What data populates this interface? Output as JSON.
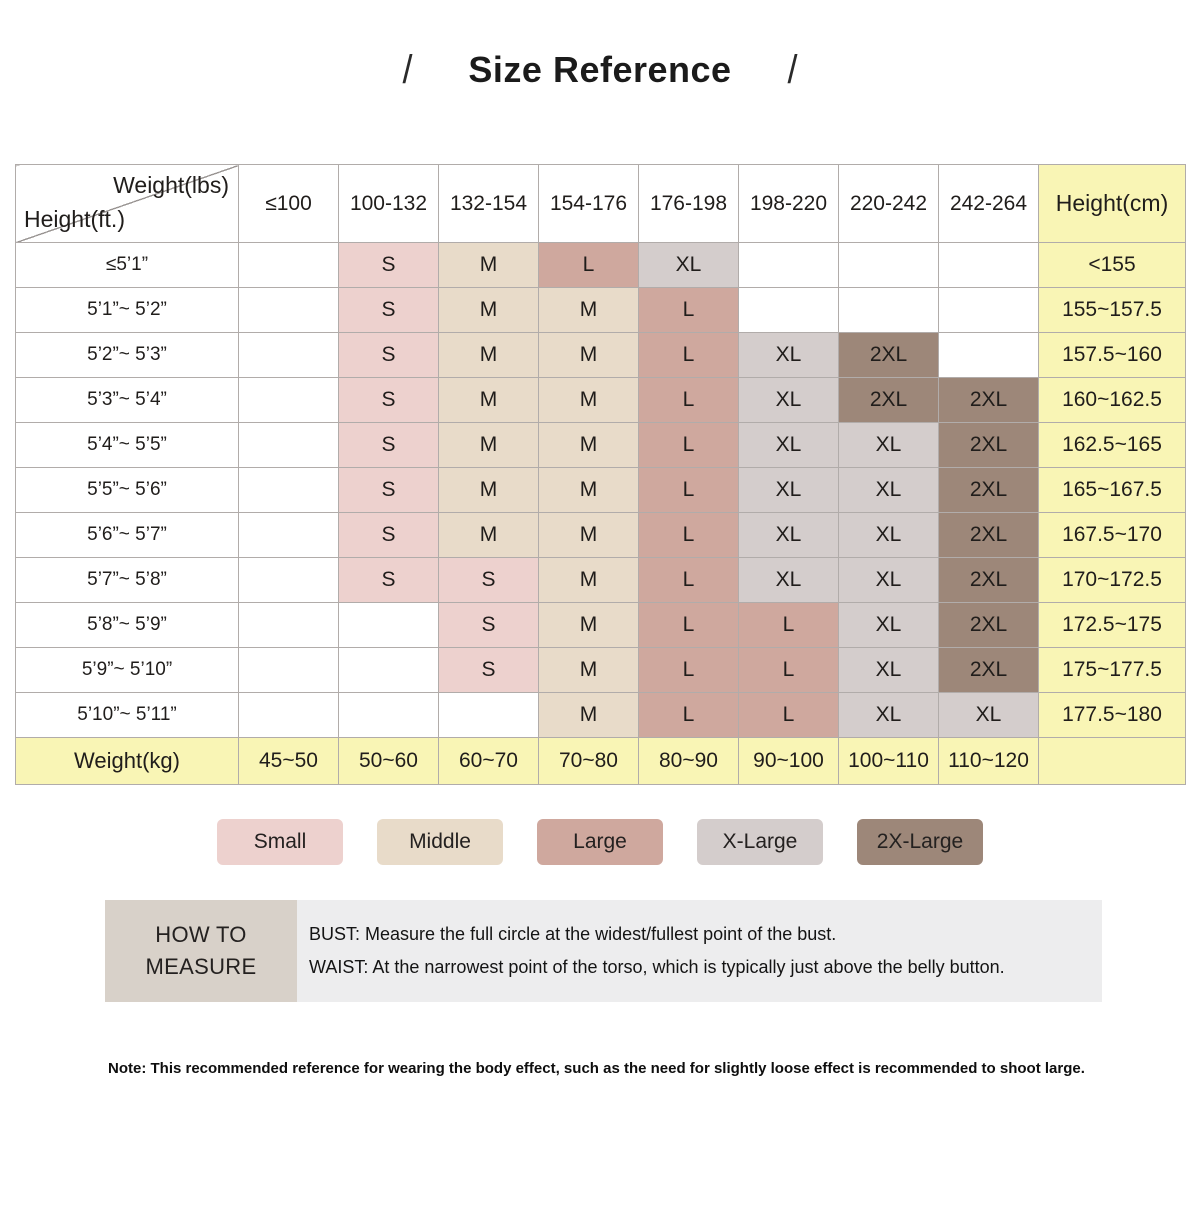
{
  "title": {
    "text": "Size Reference",
    "decor_left": "/",
    "decor_right": "/"
  },
  "colors": {
    "small": "#edd1ce",
    "middle": "#e8dbc9",
    "large": "#cfa89e",
    "xlarge": "#d4cdcc",
    "xxlarge": "#9d8779",
    "highlight": "#f9f5b5",
    "grid": "#b1acaa",
    "measure_label_bg": "#d8d1c9",
    "measure_panel_bg": "#ededee"
  },
  "table": {
    "corner": {
      "top": "Weight(lbs)",
      "bottom": "Height(ft.)"
    },
    "weight_headers": [
      "≤100",
      "100-132",
      "132-154",
      "154-176",
      "176-198",
      "198-220",
      "220-242",
      "242-264"
    ],
    "height_header": "Height(cm)",
    "rows": [
      {
        "height_ft": "≤5’1”",
        "height_cm": "<155",
        "cells": [
          null,
          {
            "text": "S",
            "size": "small"
          },
          {
            "text": "M",
            "size": "middle"
          },
          {
            "text": "L",
            "size": "large"
          },
          {
            "text": "XL",
            "size": "xlarge"
          },
          null,
          null,
          null
        ]
      },
      {
        "height_ft": "5’1”~ 5’2”",
        "height_cm": "155~157.5",
        "cells": [
          null,
          {
            "text": "S",
            "size": "small"
          },
          {
            "text": "M",
            "size": "middle"
          },
          {
            "text": "M",
            "size": "middle"
          },
          {
            "text": "L",
            "size": "large"
          },
          null,
          null,
          null
        ]
      },
      {
        "height_ft": "5’2”~ 5’3”",
        "height_cm": "157.5~160",
        "cells": [
          null,
          {
            "text": "S",
            "size": "small"
          },
          {
            "text": "M",
            "size": "middle"
          },
          {
            "text": "M",
            "size": "middle"
          },
          {
            "text": "L",
            "size": "large"
          },
          {
            "text": "XL",
            "size": "xlarge"
          },
          {
            "text": "2XL",
            "size": "xxlarge"
          },
          null
        ]
      },
      {
        "height_ft": "5’3”~ 5’4”",
        "height_cm": "160~162.5",
        "cells": [
          null,
          {
            "text": "S",
            "size": "small"
          },
          {
            "text": "M",
            "size": "middle"
          },
          {
            "text": "M",
            "size": "middle"
          },
          {
            "text": "L",
            "size": "large"
          },
          {
            "text": "XL",
            "size": "xlarge"
          },
          {
            "text": "2XL",
            "size": "xxlarge"
          },
          {
            "text": "2XL",
            "size": "xxlarge"
          }
        ]
      },
      {
        "height_ft": "5’4”~ 5’5”",
        "height_cm": "162.5~165",
        "cells": [
          null,
          {
            "text": "S",
            "size": "small"
          },
          {
            "text": "M",
            "size": "middle"
          },
          {
            "text": "M",
            "size": "middle"
          },
          {
            "text": "L",
            "size": "large"
          },
          {
            "text": "XL",
            "size": "xlarge"
          },
          {
            "text": "XL",
            "size": "xlarge"
          },
          {
            "text": "2XL",
            "size": "xxlarge"
          }
        ]
      },
      {
        "height_ft": "5’5”~ 5’6”",
        "height_cm": "165~167.5",
        "cells": [
          null,
          {
            "text": "S",
            "size": "small"
          },
          {
            "text": "M",
            "size": "middle"
          },
          {
            "text": "M",
            "size": "middle"
          },
          {
            "text": "L",
            "size": "large"
          },
          {
            "text": "XL",
            "size": "xlarge"
          },
          {
            "text": "XL",
            "size": "xlarge"
          },
          {
            "text": "2XL",
            "size": "xxlarge"
          }
        ]
      },
      {
        "height_ft": "5’6”~ 5’7”",
        "height_cm": "167.5~170",
        "cells": [
          null,
          {
            "text": "S",
            "size": "small"
          },
          {
            "text": "M",
            "size": "middle"
          },
          {
            "text": "M",
            "size": "middle"
          },
          {
            "text": "L",
            "size": "large"
          },
          {
            "text": "XL",
            "size": "xlarge"
          },
          {
            "text": "XL",
            "size": "xlarge"
          },
          {
            "text": "2XL",
            "size": "xxlarge"
          }
        ]
      },
      {
        "height_ft": "5’7”~ 5’8”",
        "height_cm": "170~172.5",
        "cells": [
          null,
          {
            "text": "S",
            "size": "small"
          },
          {
            "text": "S",
            "size": "small"
          },
          {
            "text": "M",
            "size": "middle"
          },
          {
            "text": "L",
            "size": "large"
          },
          {
            "text": "XL",
            "size": "xlarge"
          },
          {
            "text": "XL",
            "size": "xlarge"
          },
          {
            "text": "2XL",
            "size": "xxlarge"
          }
        ]
      },
      {
        "height_ft": "5’8”~ 5’9”",
        "height_cm": "172.5~175",
        "cells": [
          null,
          null,
          {
            "text": "S",
            "size": "small"
          },
          {
            "text": "M",
            "size": "middle"
          },
          {
            "text": "L",
            "size": "large"
          },
          {
            "text": "L",
            "size": "large"
          },
          {
            "text": "XL",
            "size": "xlarge"
          },
          {
            "text": "2XL",
            "size": "xxlarge"
          }
        ]
      },
      {
        "height_ft": "5’9”~ 5’10”",
        "height_cm": "175~177.5",
        "cells": [
          null,
          null,
          {
            "text": "S",
            "size": "small"
          },
          {
            "text": "M",
            "size": "middle"
          },
          {
            "text": "L",
            "size": "large"
          },
          {
            "text": "L",
            "size": "large"
          },
          {
            "text": "XL",
            "size": "xlarge"
          },
          {
            "text": "2XL",
            "size": "xxlarge"
          }
        ]
      },
      {
        "height_ft": "5’10”~ 5’11”",
        "height_cm": "177.5~180",
        "cells": [
          null,
          null,
          null,
          {
            "text": "M",
            "size": "middle"
          },
          {
            "text": "L",
            "size": "large"
          },
          {
            "text": "L",
            "size": "large"
          },
          {
            "text": "XL",
            "size": "xlarge"
          },
          {
            "text": "XL",
            "size": "xlarge"
          }
        ]
      }
    ],
    "footer": {
      "label": "Weight(kg)",
      "values": [
        "45~50",
        "50~60",
        "60~70",
        "70~80",
        "80~90",
        "90~100",
        "100~110",
        "110~120"
      ]
    }
  },
  "legend": [
    {
      "label": "Small",
      "size": "small"
    },
    {
      "label": "Middle",
      "size": "middle"
    },
    {
      "label": "Large",
      "size": "large"
    },
    {
      "label": "X-Large",
      "size": "xlarge"
    },
    {
      "label": "2X-Large",
      "size": "xxlarge"
    }
  ],
  "how_to_measure": {
    "label": "HOW TO MEASURE",
    "lines": [
      "BUST: Measure the full circle at the widest/fullest point of the bust.",
      "WAIST: At the narrowest point of the torso, which is typically just above the belly button."
    ]
  },
  "note": "Note: This recommended reference for wearing the body effect, such as the need for slightly loose effect is recommended to shoot large."
}
